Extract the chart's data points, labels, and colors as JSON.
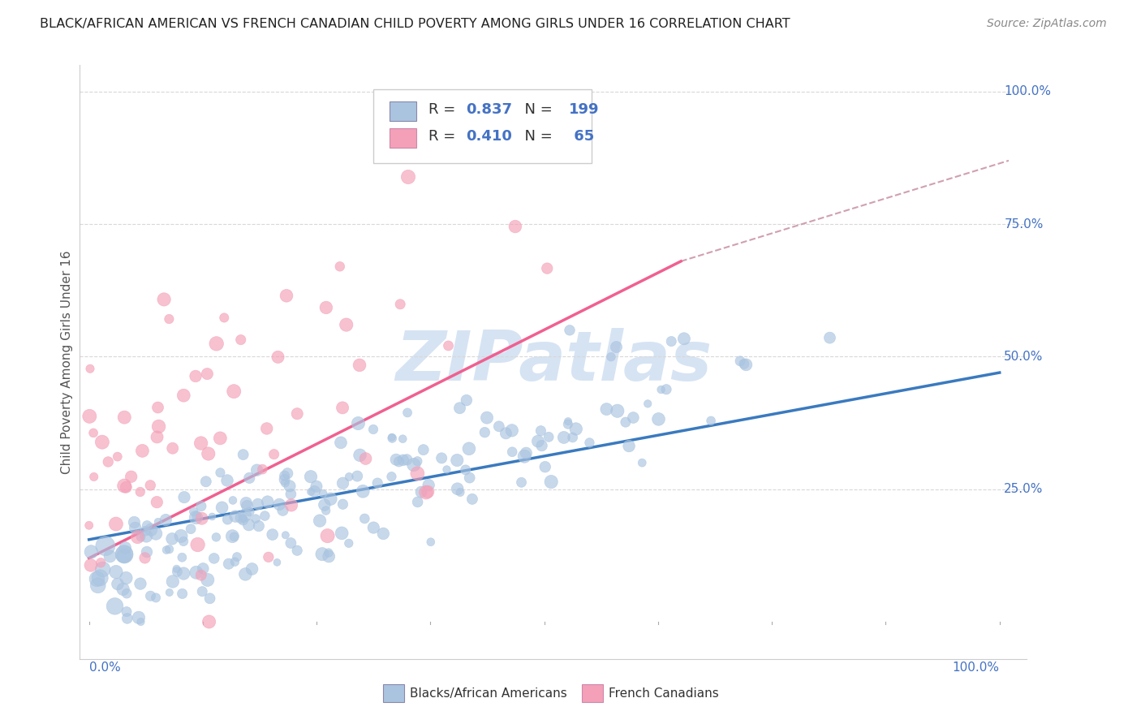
{
  "title": "BLACK/AFRICAN AMERICAN VS FRENCH CANADIAN CHILD POVERTY AMONG GIRLS UNDER 16 CORRELATION CHART",
  "source": "Source: ZipAtlas.com",
  "ylabel": "Child Poverty Among Girls Under 16",
  "legend_blue_label": "Blacks/African Americans",
  "legend_pink_label": "French Canadians",
  "blue_R": 0.837,
  "blue_N": 199,
  "pink_R": 0.41,
  "pink_N": 65,
  "blue_color": "#aac4e0",
  "pink_color": "#f4a0b8",
  "blue_line_color": "#3a7abf",
  "pink_line_color": "#f06090",
  "text_color": "#4472c4",
  "watermark_color": "#c5d8ee",
  "bg_color": "#ffffff",
  "grid_color": "#d8d8d8",
  "seed": 12345,
  "blue_line_x0": 0.0,
  "blue_line_y0": 0.155,
  "blue_line_x1": 1.0,
  "blue_line_y1": 0.47,
  "pink_line_x0": 0.0,
  "pink_line_y0": 0.12,
  "pink_line_x1": 0.65,
  "pink_line_y1": 0.68,
  "dashed_line_x0": 0.65,
  "dashed_line_y0": 0.68,
  "dashed_line_x1": 1.01,
  "dashed_line_y1": 0.87,
  "xlim": [
    -0.01,
    1.03
  ],
  "ylim": [
    -0.07,
    1.05
  ]
}
